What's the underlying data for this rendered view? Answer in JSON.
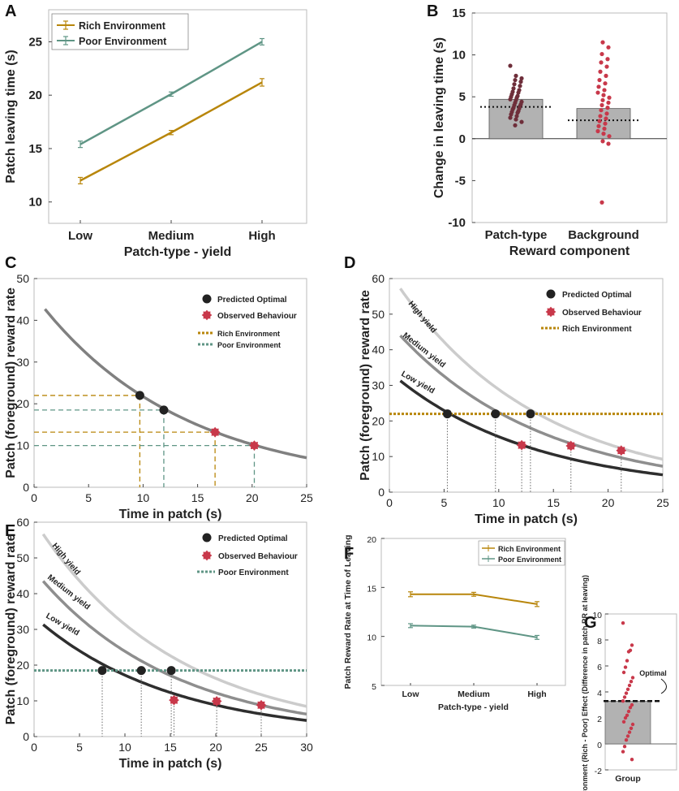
{
  "colors": {
    "rich": "#b8860b",
    "poor": "#5f9585",
    "optimal_dot": "#222222",
    "observed_dot": "#c8384a",
    "high_curve": "#cccccc",
    "medium_curve": "#8e8e8e",
    "low_curve": "#2e2e2e",
    "single_curve": "#808080",
    "bar": "#b2b2b2"
  },
  "chart_data": [
    {
      "panel": "A",
      "type": "line",
      "categories": [
        "Low",
        "Medium",
        "High"
      ],
      "xlabel": "Patch-type - yield",
      "ylabel": "Patch leaving time (s)",
      "ylim": [
        8,
        28
      ],
      "yticks": [
        10,
        15,
        20,
        25
      ],
      "series": [
        {
          "name": "Rich Environment",
          "values": [
            12.0,
            16.5,
            21.2
          ],
          "err": [
            0.3,
            0.2,
            0.35
          ]
        },
        {
          "name": "Poor Environment",
          "values": [
            15.4,
            20.1,
            25.0
          ],
          "err": [
            0.3,
            0.2,
            0.3
          ]
        }
      ]
    },
    {
      "panel": "B",
      "type": "bar",
      "categories": [
        "Patch-type",
        "Background"
      ],
      "values": [
        4.7,
        3.6
      ],
      "dotted_lines": [
        3.8,
        2.2
      ],
      "xlabel": "Reward component",
      "ylabel": "Change in leaving time (s)",
      "ylim": [
        -10,
        15
      ],
      "yticks": [
        -10,
        -5,
        0,
        5,
        10,
        15
      ],
      "points_patch_type": [
        8.7,
        7.5,
        7.2,
        7.0,
        6.8,
        6.5,
        6.3,
        6.0,
        5.8,
        5.6,
        5.5,
        5.3,
        5.1,
        5.0,
        4.9,
        4.7,
        4.6,
        4.4,
        4.3,
        4.1,
        4.0,
        3.9,
        3.7,
        3.6,
        3.5,
        3.3,
        3.2,
        3.1,
        2.9,
        2.7,
        2.5,
        2.3,
        2.0,
        1.6
      ],
      "points_background": [
        11.5,
        10.9,
        10.1,
        9.5,
        9.1,
        8.6,
        8.0,
        7.5,
        7.0,
        6.6,
        6.2,
        5.8,
        5.5,
        5.2,
        4.9,
        4.6,
        4.3,
        4.0,
        3.7,
        3.4,
        3.0,
        2.7,
        2.4,
        2.1,
        1.8,
        1.5,
        1.2,
        0.9,
        0.6,
        0.3,
        -0.3,
        -0.6,
        -7.6
      ]
    },
    {
      "panel": "C",
      "type": "line",
      "xlabel": "Time in patch (s)",
      "ylabel": "Patch (foreground) reward rate",
      "xlim": [
        0,
        25
      ],
      "ylim": [
        0,
        50
      ],
      "xticks": [
        0,
        5,
        10,
        15,
        20,
        25
      ],
      "yticks": [
        0,
        10,
        20,
        30,
        40,
        50
      ],
      "curve": {
        "a": 46,
        "k": 0.075
      },
      "optimal_points": [
        {
          "x": 9.7,
          "y": 22.0
        },
        {
          "x": 11.9,
          "y": 18.5
        }
      ],
      "observed_points": [
        {
          "x": 16.6,
          "y": 13.2
        },
        {
          "x": 20.2,
          "y": 10.0
        }
      ],
      "rich_pairs": [
        {
          "x": 9.7,
          "y": 22.0
        },
        {
          "x": 16.6,
          "y": 13.2
        }
      ],
      "poor_pairs": [
        {
          "x": 11.9,
          "y": 18.5
        },
        {
          "x": 20.2,
          "y": 10.0
        }
      ],
      "legend": [
        "Predicted Optimal",
        "Observed Behaviour",
        "Rich Environment",
        "Poor Environment"
      ]
    },
    {
      "panel": "D",
      "type": "line",
      "xlabel": "Time in patch (s)",
      "ylabel": "Patch (foreground) reward rate",
      "xlim": [
        0,
        25
      ],
      "ylim": [
        0,
        60
      ],
      "xticks": [
        0,
        5,
        10,
        15,
        20,
        25
      ],
      "yticks": [
        0,
        10,
        20,
        30,
        40,
        50,
        60
      ],
      "curves": [
        {
          "name": "High yield",
          "a": 61.7,
          "k": 0.076
        },
        {
          "name": "Medium yield",
          "a": 47.4,
          "k": 0.075
        },
        {
          "name": "Low yield",
          "a": 33.8,
          "k": 0.0775
        }
      ],
      "threshold": 22,
      "optimal_points": [
        {
          "x": 5.3,
          "y": 22
        },
        {
          "x": 9.7,
          "y": 22
        },
        {
          "x": 12.9,
          "y": 22
        }
      ],
      "observed_points": [
        {
          "x": 12.1,
          "y": 13.2
        },
        {
          "x": 16.6,
          "y": 13.0
        },
        {
          "x": 21.2,
          "y": 11.7
        }
      ],
      "legend": [
        "Predicted Optimal",
        "Observed Behaviour",
        "Rich Environment"
      ]
    },
    {
      "panel": "E",
      "type": "line",
      "xlabel": "Time in patch (s)",
      "ylabel": "Patch (foreground) reward rate",
      "xlim": [
        0,
        30
      ],
      "ylim": [
        0,
        60
      ],
      "xticks": [
        0,
        5,
        10,
        15,
        20,
        25,
        30
      ],
      "yticks": [
        0,
        10,
        20,
        30,
        40,
        50,
        60
      ],
      "curves": [
        {
          "name": "High yield",
          "a": 60.5,
          "k": 0.0656
        },
        {
          "name": "Medium yield",
          "a": 46.5,
          "k": 0.0667
        },
        {
          "name": "Low yield",
          "a": 33.5,
          "k": 0.0667
        }
      ],
      "threshold": 18.5,
      "optimal_points": [
        {
          "x": 7.5,
          "y": 18.5
        },
        {
          "x": 11.8,
          "y": 18.5
        },
        {
          "x": 15.1,
          "y": 18.5
        }
      ],
      "observed_points": [
        {
          "x": 15.4,
          "y": 10.2
        },
        {
          "x": 20.1,
          "y": 9.9
        },
        {
          "x": 25.0,
          "y": 8.8
        }
      ],
      "legend": [
        "Predicted Optimal",
        "Observed Behaviour",
        "Poor Environment"
      ]
    },
    {
      "panel": "F",
      "type": "line",
      "categories": [
        "Low",
        "Medium",
        "High"
      ],
      "xlabel": "Patch-type - yield",
      "ylabel": "Patch Reward Rate at Time of Leaving",
      "ylim": [
        5,
        20
      ],
      "yticks": [
        5,
        10,
        15,
        20
      ],
      "series": [
        {
          "name": "Rich Environment",
          "values": [
            14.3,
            14.3,
            13.3
          ],
          "err": [
            0.25,
            0.2,
            0.25
          ]
        },
        {
          "name": "Poor Environment",
          "values": [
            11.1,
            11.0,
            9.9
          ],
          "err": [
            0.2,
            0.15,
            0.2
          ]
        }
      ]
    },
    {
      "panel": "G",
      "type": "bar",
      "categories": [
        "Group"
      ],
      "values": [
        3.3
      ],
      "optimal": 3.3,
      "optimal_label": "Optimal",
      "ylabel": "Environment (Rich - Poor) Effect (Difference in patch RR at leaving)",
      "ylim": [
        -2,
        10
      ],
      "yticks": [
        -2,
        0,
        2,
        4,
        6,
        8,
        10
      ],
      "points": [
        9.3,
        7.6,
        7.2,
        7.1,
        6.4,
        5.9,
        5.5,
        5.1,
        4.8,
        4.5,
        4.2,
        3.9,
        3.6,
        3.3,
        3.0,
        2.8,
        2.5,
        2.2,
        2.0,
        1.7,
        1.5,
        1.2,
        0.9,
        0.6,
        0.3,
        -0.2,
        -0.6,
        -1.2
      ]
    }
  ]
}
